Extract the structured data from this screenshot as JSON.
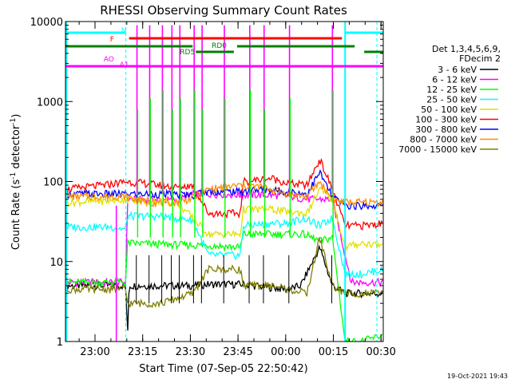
{
  "chart_data": {
    "type": "line",
    "title": "RHESSI Observing Summary Count Rates",
    "xlabel": "Start Time (07-Sep-05 22:50:42)",
    "ylabel_main": "Count Rate (s",
    "ylabel_sup1": "-1",
    "ylabel_mid": " detector",
    "ylabel_sup2": "-1",
    "ylabel_end": ")",
    "y_scale": "log",
    "ylim": [
      1,
      10000
    ],
    "xlim_minutes": [
      0,
      100
    ],
    "x_ticks": [
      "23:00",
      "23:15",
      "23:30",
      "23:45",
      "00:00",
      "00:15",
      "00:30"
    ],
    "x_tick_minutes": [
      9.3,
      24.3,
      39.3,
      54.3,
      69.3,
      84.3,
      99.3
    ],
    "y_ticks": [
      "1",
      "10",
      "100",
      "1000",
      "10000"
    ],
    "y_tick_values": [
      1,
      10,
      100,
      1000,
      10000
    ],
    "legend_header": [
      "Det 1,3,4,5,6,9,",
      "FDecim 2"
    ],
    "series": [
      {
        "name": "3 - 6 keV",
        "color": "#000000",
        "points": [
          [
            0,
            5
          ],
          [
            19,
            5
          ],
          [
            19.5,
            1
          ],
          [
            20,
            5
          ],
          [
            40,
            5
          ],
          [
            45,
            5.2
          ],
          [
            55,
            5.2
          ],
          [
            70,
            4.5
          ],
          [
            74,
            5
          ],
          [
            80,
            15
          ],
          [
            84,
            5
          ],
          [
            88,
            4
          ],
          [
            100,
            4
          ]
        ]
      },
      {
        "name": "6 - 12 keV",
        "color": "#ff00ff",
        "points": [
          [
            0,
            5.5
          ],
          [
            19,
            5.5
          ],
          [
            19.5,
            60
          ],
          [
            25,
            60
          ],
          [
            35,
            58
          ],
          [
            40,
            70
          ],
          [
            47,
            70
          ],
          [
            55,
            68
          ],
          [
            62,
            68
          ],
          [
            70,
            66
          ],
          [
            76,
            60
          ],
          [
            84,
            60
          ],
          [
            90,
            5.5
          ],
          [
            100,
            5.5
          ]
        ]
      },
      {
        "name": "12 - 25 keV",
        "color": "#00ff00",
        "points": [
          [
            0,
            5.5
          ],
          [
            19,
            5.5
          ],
          [
            19.5,
            17
          ],
          [
            40,
            16
          ],
          [
            45,
            16
          ],
          [
            55,
            15
          ],
          [
            56,
            22
          ],
          [
            65,
            22
          ],
          [
            70,
            22
          ],
          [
            75,
            22
          ],
          [
            80,
            18
          ],
          [
            84,
            20
          ],
          [
            88,
            1
          ],
          [
            93,
            1
          ],
          [
            100,
            1.2
          ]
        ]
      },
      {
        "name": "25 - 50 keV",
        "color": "#00ffff",
        "points": [
          [
            0,
            27
          ],
          [
            15,
            27
          ],
          [
            19,
            25
          ],
          [
            19.5,
            37
          ],
          [
            30,
            37
          ],
          [
            40,
            33
          ],
          [
            45,
            12
          ],
          [
            55,
            12
          ],
          [
            56,
            28
          ],
          [
            65,
            30
          ],
          [
            70,
            30
          ],
          [
            75,
            35
          ],
          [
            80,
            28
          ],
          [
            84,
            35
          ],
          [
            88,
            7
          ],
          [
            93,
            7
          ],
          [
            100,
            8
          ]
        ]
      },
      {
        "name": "50 - 100 keV",
        "color": "#e0e000",
        "points": [
          [
            0,
            55
          ],
          [
            12,
            57
          ],
          [
            19,
            60
          ],
          [
            25,
            58
          ],
          [
            35,
            55
          ],
          [
            40,
            35
          ],
          [
            45,
            22
          ],
          [
            55,
            22
          ],
          [
            56,
            45
          ],
          [
            65,
            45
          ],
          [
            70,
            42
          ],
          [
            76,
            40
          ],
          [
            80,
            80
          ],
          [
            84,
            60
          ],
          [
            88,
            15
          ],
          [
            93,
            17
          ],
          [
            100,
            16
          ]
        ]
      },
      {
        "name": "100 - 300 keV",
        "color": "#ff0000",
        "points": [
          [
            0,
            80
          ],
          [
            12,
            90
          ],
          [
            19,
            100
          ],
          [
            25,
            95
          ],
          [
            35,
            85
          ],
          [
            40,
            90
          ],
          [
            45,
            40
          ],
          [
            55,
            40
          ],
          [
            56,
            100
          ],
          [
            65,
            110
          ],
          [
            70,
            95
          ],
          [
            76,
            90
          ],
          [
            80,
            190
          ],
          [
            84,
            80
          ],
          [
            88,
            28
          ],
          [
            93,
            28
          ],
          [
            100,
            30
          ]
        ]
      },
      {
        "name": "300 - 800 keV",
        "color": "#0000ff",
        "points": [
          [
            0,
            70
          ],
          [
            19,
            70
          ],
          [
            19.5,
            70
          ],
          [
            30,
            70
          ],
          [
            40,
            68
          ],
          [
            45,
            75
          ],
          [
            55,
            75
          ],
          [
            62,
            80
          ],
          [
            70,
            75
          ],
          [
            76,
            70
          ],
          [
            80,
            130
          ],
          [
            84,
            65
          ],
          [
            88,
            50
          ],
          [
            100,
            50
          ]
        ]
      },
      {
        "name": "800 - 7000 keV",
        "color": "#ff8c00",
        "points": [
          [
            0,
            65
          ],
          [
            19,
            65
          ],
          [
            25,
            55
          ],
          [
            35,
            55
          ],
          [
            40,
            62
          ],
          [
            45,
            80
          ],
          [
            55,
            90
          ],
          [
            62,
            85
          ],
          [
            70,
            70
          ],
          [
            76,
            65
          ],
          [
            80,
            100
          ],
          [
            84,
            60
          ],
          [
            88,
            55
          ],
          [
            100,
            55
          ]
        ]
      },
      {
        "name": "7000 - 15000 keV",
        "color": "#808000",
        "points": [
          [
            0,
            4.5
          ],
          [
            19,
            4.5
          ],
          [
            19.5,
            3
          ],
          [
            30,
            3
          ],
          [
            40,
            4
          ],
          [
            45,
            8
          ],
          [
            55,
            8
          ],
          [
            56,
            5
          ],
          [
            65,
            5
          ],
          [
            70,
            4.5
          ],
          [
            76,
            4
          ],
          [
            80,
            20
          ],
          [
            84,
            5
          ],
          [
            88,
            4
          ],
          [
            100,
            4
          ]
        ]
      }
    ],
    "spikes_minutes": [
      22.5,
      26.5,
      30.5,
      33.5,
      36,
      40.5,
      43,
      50,
      58,
      62.5,
      70.5,
      84
    ],
    "annotations": [
      {
        "text": "F",
        "color": "#ff0000"
      },
      {
        "text": "N",
        "color": "#00ffff"
      },
      {
        "text": "RD0",
        "color": "#008000"
      },
      {
        "text": "RD5",
        "color": "#008000"
      },
      {
        "text": "AO",
        "color": "#ff00ff"
      },
      {
        "text": "A1",
        "color": "#ff00ff"
      }
    ]
  },
  "timestamp": "19-Oct-2021 19:43"
}
